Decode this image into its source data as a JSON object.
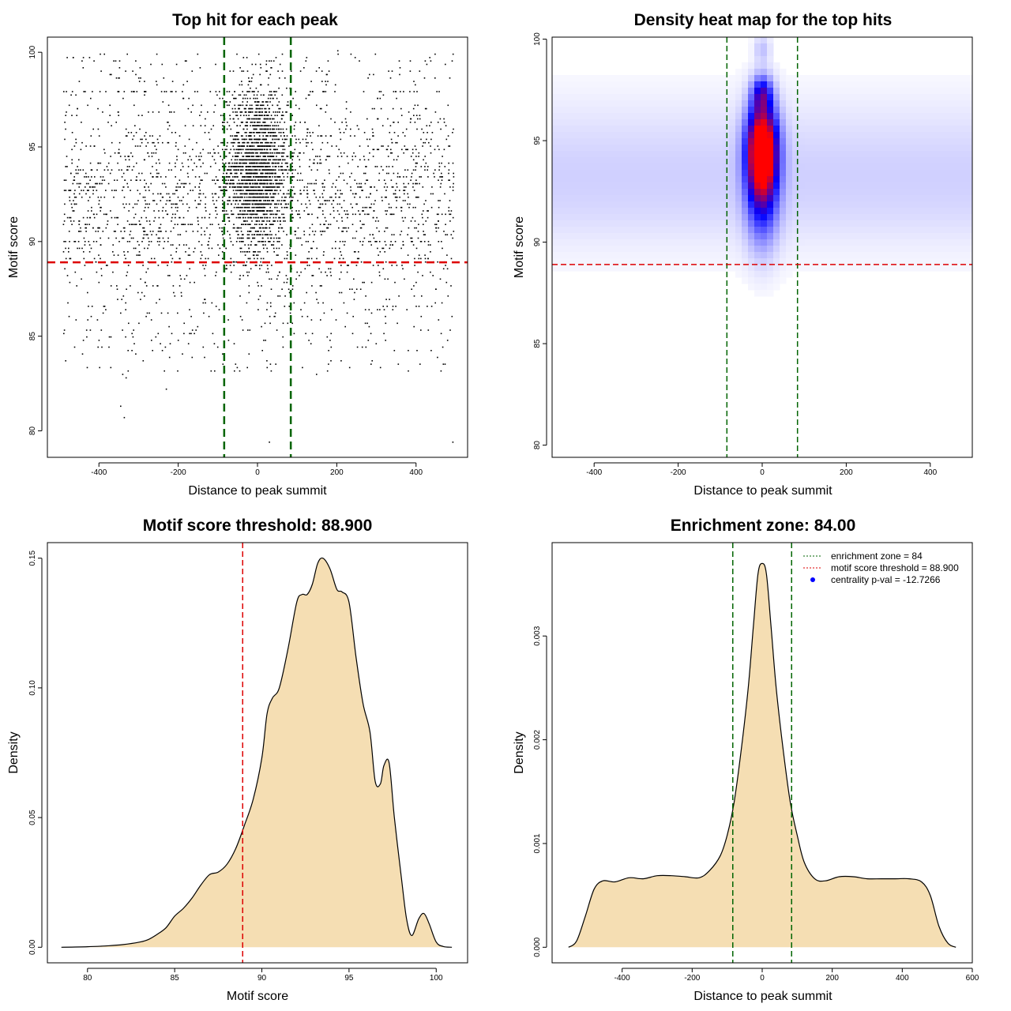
{
  "figure": {
    "background": "#ffffff"
  },
  "chart_data": [
    {
      "id": "scatter",
      "type": "scatter",
      "title": "Top hit for each peak",
      "xlabel": "Distance to peak summit",
      "ylabel": "Motif score",
      "xlim": [
        -530,
        530
      ],
      "ylim": [
        78.6,
        100.8
      ],
      "xticks": [
        -400,
        -200,
        0,
        200,
        400
      ],
      "yticks": [
        80,
        85,
        90,
        95,
        100
      ],
      "hlines": [
        {
          "y": 88.9,
          "color": "#dd0000",
          "style": "dashed"
        }
      ],
      "vlines": [
        {
          "x": -84,
          "color": "#006400",
          "style": "dashed"
        },
        {
          "x": 84,
          "color": "#006400",
          "style": "dashed"
        }
      ],
      "point_color": "#000000",
      "points_note": "dense cloud of points over x in [-490, 495], y in roughly [80.7, 100]; most between 87 and 98, concentrated near x = 0 and y ≈ 94"
    },
    {
      "id": "heatmap",
      "type": "heatmap",
      "title": "Density heat map for the top hits",
      "xlabel": "Distance to peak summit",
      "ylabel": "Motif score",
      "xlim": [
        -500,
        500
      ],
      "ylim": [
        79.4,
        100.1
      ],
      "xticks": [
        -400,
        -200,
        0,
        200,
        400
      ],
      "yticks": [
        80,
        85,
        90,
        95,
        100
      ],
      "hlines": [
        {
          "y": 88.9,
          "color": "#dd0000",
          "style": "dashed"
        }
      ],
      "vlines": [
        {
          "x": -84,
          "color": "#006400",
          "style": "dashed"
        },
        {
          "x": 84,
          "color": "#006400",
          "style": "dashed"
        }
      ],
      "colorscale": [
        "#ffffff",
        "#0000ff",
        "#ff0000"
      ],
      "hotspots": [
        {
          "x": 0,
          "y": 94.7,
          "sx": 24,
          "sy": 1.4,
          "w": 1.0
        },
        {
          "x": 0,
          "y": 93.0,
          "sx": 26,
          "sy": 2.0,
          "w": 0.55
        },
        {
          "x": 0,
          "y": 97.3,
          "sx": 16,
          "sy": 0.6,
          "w": 0.45
        },
        {
          "x": 0,
          "y": 99.5,
          "sx": 14,
          "sy": 0.5,
          "w": 0.12
        }
      ],
      "background_band": {
        "ymin": 83.5,
        "ymax": 99,
        "peak_y": 93.5,
        "level": 0.1
      }
    },
    {
      "id": "score-density",
      "type": "area",
      "title": "Motif score threshold: 88.900",
      "xlabel": "Motif score",
      "ylabel": "Density",
      "xlim": [
        77.7,
        101.8
      ],
      "ylim": [
        -0.006,
        0.156
      ],
      "xticks": [
        80,
        85,
        90,
        95,
        100
      ],
      "yticks": [
        0.0,
        0.05,
        0.1,
        0.15
      ],
      "ytick_labels": [
        "0.00",
        "0.05",
        "0.10",
        "0.15"
      ],
      "fill": "#f5deb3",
      "vlines": [
        {
          "x": 88.9,
          "color": "#dd0000",
          "style": "dashed"
        }
      ],
      "x": [
        78.5,
        80,
        81,
        82,
        83,
        83.5,
        84,
        84.5,
        85,
        85.5,
        86,
        86.5,
        87,
        87.5,
        88,
        88.5,
        89,
        89.5,
        90,
        90.3,
        90.6,
        91,
        91.5,
        92,
        92.3,
        92.6,
        92.9,
        93.2,
        93.5,
        93.9,
        94.3,
        94.6,
        95,
        95.4,
        95.8,
        96.2,
        96.5,
        96.8,
        97,
        97.3,
        97.6,
        98,
        98.3,
        98.6,
        99,
        99.3,
        99.6,
        100,
        100.4,
        100.9
      ],
      "y": [
        0.0,
        0.0002,
        0.0005,
        0.001,
        0.002,
        0.003,
        0.005,
        0.0075,
        0.012,
        0.015,
        0.019,
        0.024,
        0.028,
        0.029,
        0.032,
        0.038,
        0.047,
        0.057,
        0.073,
        0.09,
        0.096,
        0.1,
        0.115,
        0.133,
        0.136,
        0.136,
        0.14,
        0.148,
        0.15,
        0.146,
        0.138,
        0.137,
        0.133,
        0.112,
        0.094,
        0.083,
        0.064,
        0.063,
        0.07,
        0.071,
        0.05,
        0.027,
        0.011,
        0.0045,
        0.011,
        0.013,
        0.009,
        0.002,
        0.0003,
        0.0
      ]
    },
    {
      "id": "distance-density",
      "type": "area",
      "title": "Enrichment zone: 84.00",
      "xlabel": "Distance to peak summit",
      "ylabel": "Density",
      "xlim": [
        -600,
        600
      ],
      "ylim": [
        -0.00015,
        0.0039
      ],
      "xticks": [
        -400,
        -200,
        0,
        200,
        400,
        600
      ],
      "yticks": [
        0.0,
        0.001,
        0.002,
        0.003
      ],
      "ytick_labels": [
        "0.000",
        "0.001",
        "0.002",
        "0.003"
      ],
      "fill": "#f5deb3",
      "vlines": [
        {
          "x": -84,
          "color": "#006400",
          "style": "dashed"
        },
        {
          "x": 84,
          "color": "#006400",
          "style": "dashed"
        }
      ],
      "x": [
        -553,
        -530,
        -505,
        -480,
        -455,
        -420,
        -380,
        -340,
        -300,
        -260,
        -220,
        -180,
        -150,
        -120,
        -100,
        -80,
        -60,
        -40,
        -25,
        -12,
        0,
        12,
        25,
        40,
        60,
        80,
        100,
        120,
        150,
        180,
        220,
        260,
        300,
        340,
        380,
        420,
        455,
        480,
        505,
        530,
        553
      ],
      "y": [
        0.0,
        6e-05,
        0.0003,
        0.00056,
        0.00064,
        0.00063,
        0.00067,
        0.00066,
        0.00069,
        0.00069,
        0.00068,
        0.00067,
        0.00074,
        0.00088,
        0.00108,
        0.0014,
        0.0019,
        0.0025,
        0.0031,
        0.0036,
        0.0037,
        0.0036,
        0.0031,
        0.0025,
        0.0019,
        0.0014,
        0.00108,
        0.00082,
        0.00066,
        0.00064,
        0.00068,
        0.00068,
        0.00066,
        0.00066,
        0.00066,
        0.00066,
        0.00063,
        0.0005,
        0.0002,
        4e-05,
        0.0
      ],
      "legend": {
        "position": "top-right",
        "entries": [
          {
            "label": "enrichment zone = 84",
            "color": "#006400",
            "symbol": "dotted-line"
          },
          {
            "label": "motif score threshold = 88.900",
            "color": "#dd0000",
            "symbol": "dotted-line"
          },
          {
            "label": "centrality p-val = -12.7266",
            "color": "#0000ff",
            "symbol": "dot"
          }
        ]
      }
    }
  ]
}
